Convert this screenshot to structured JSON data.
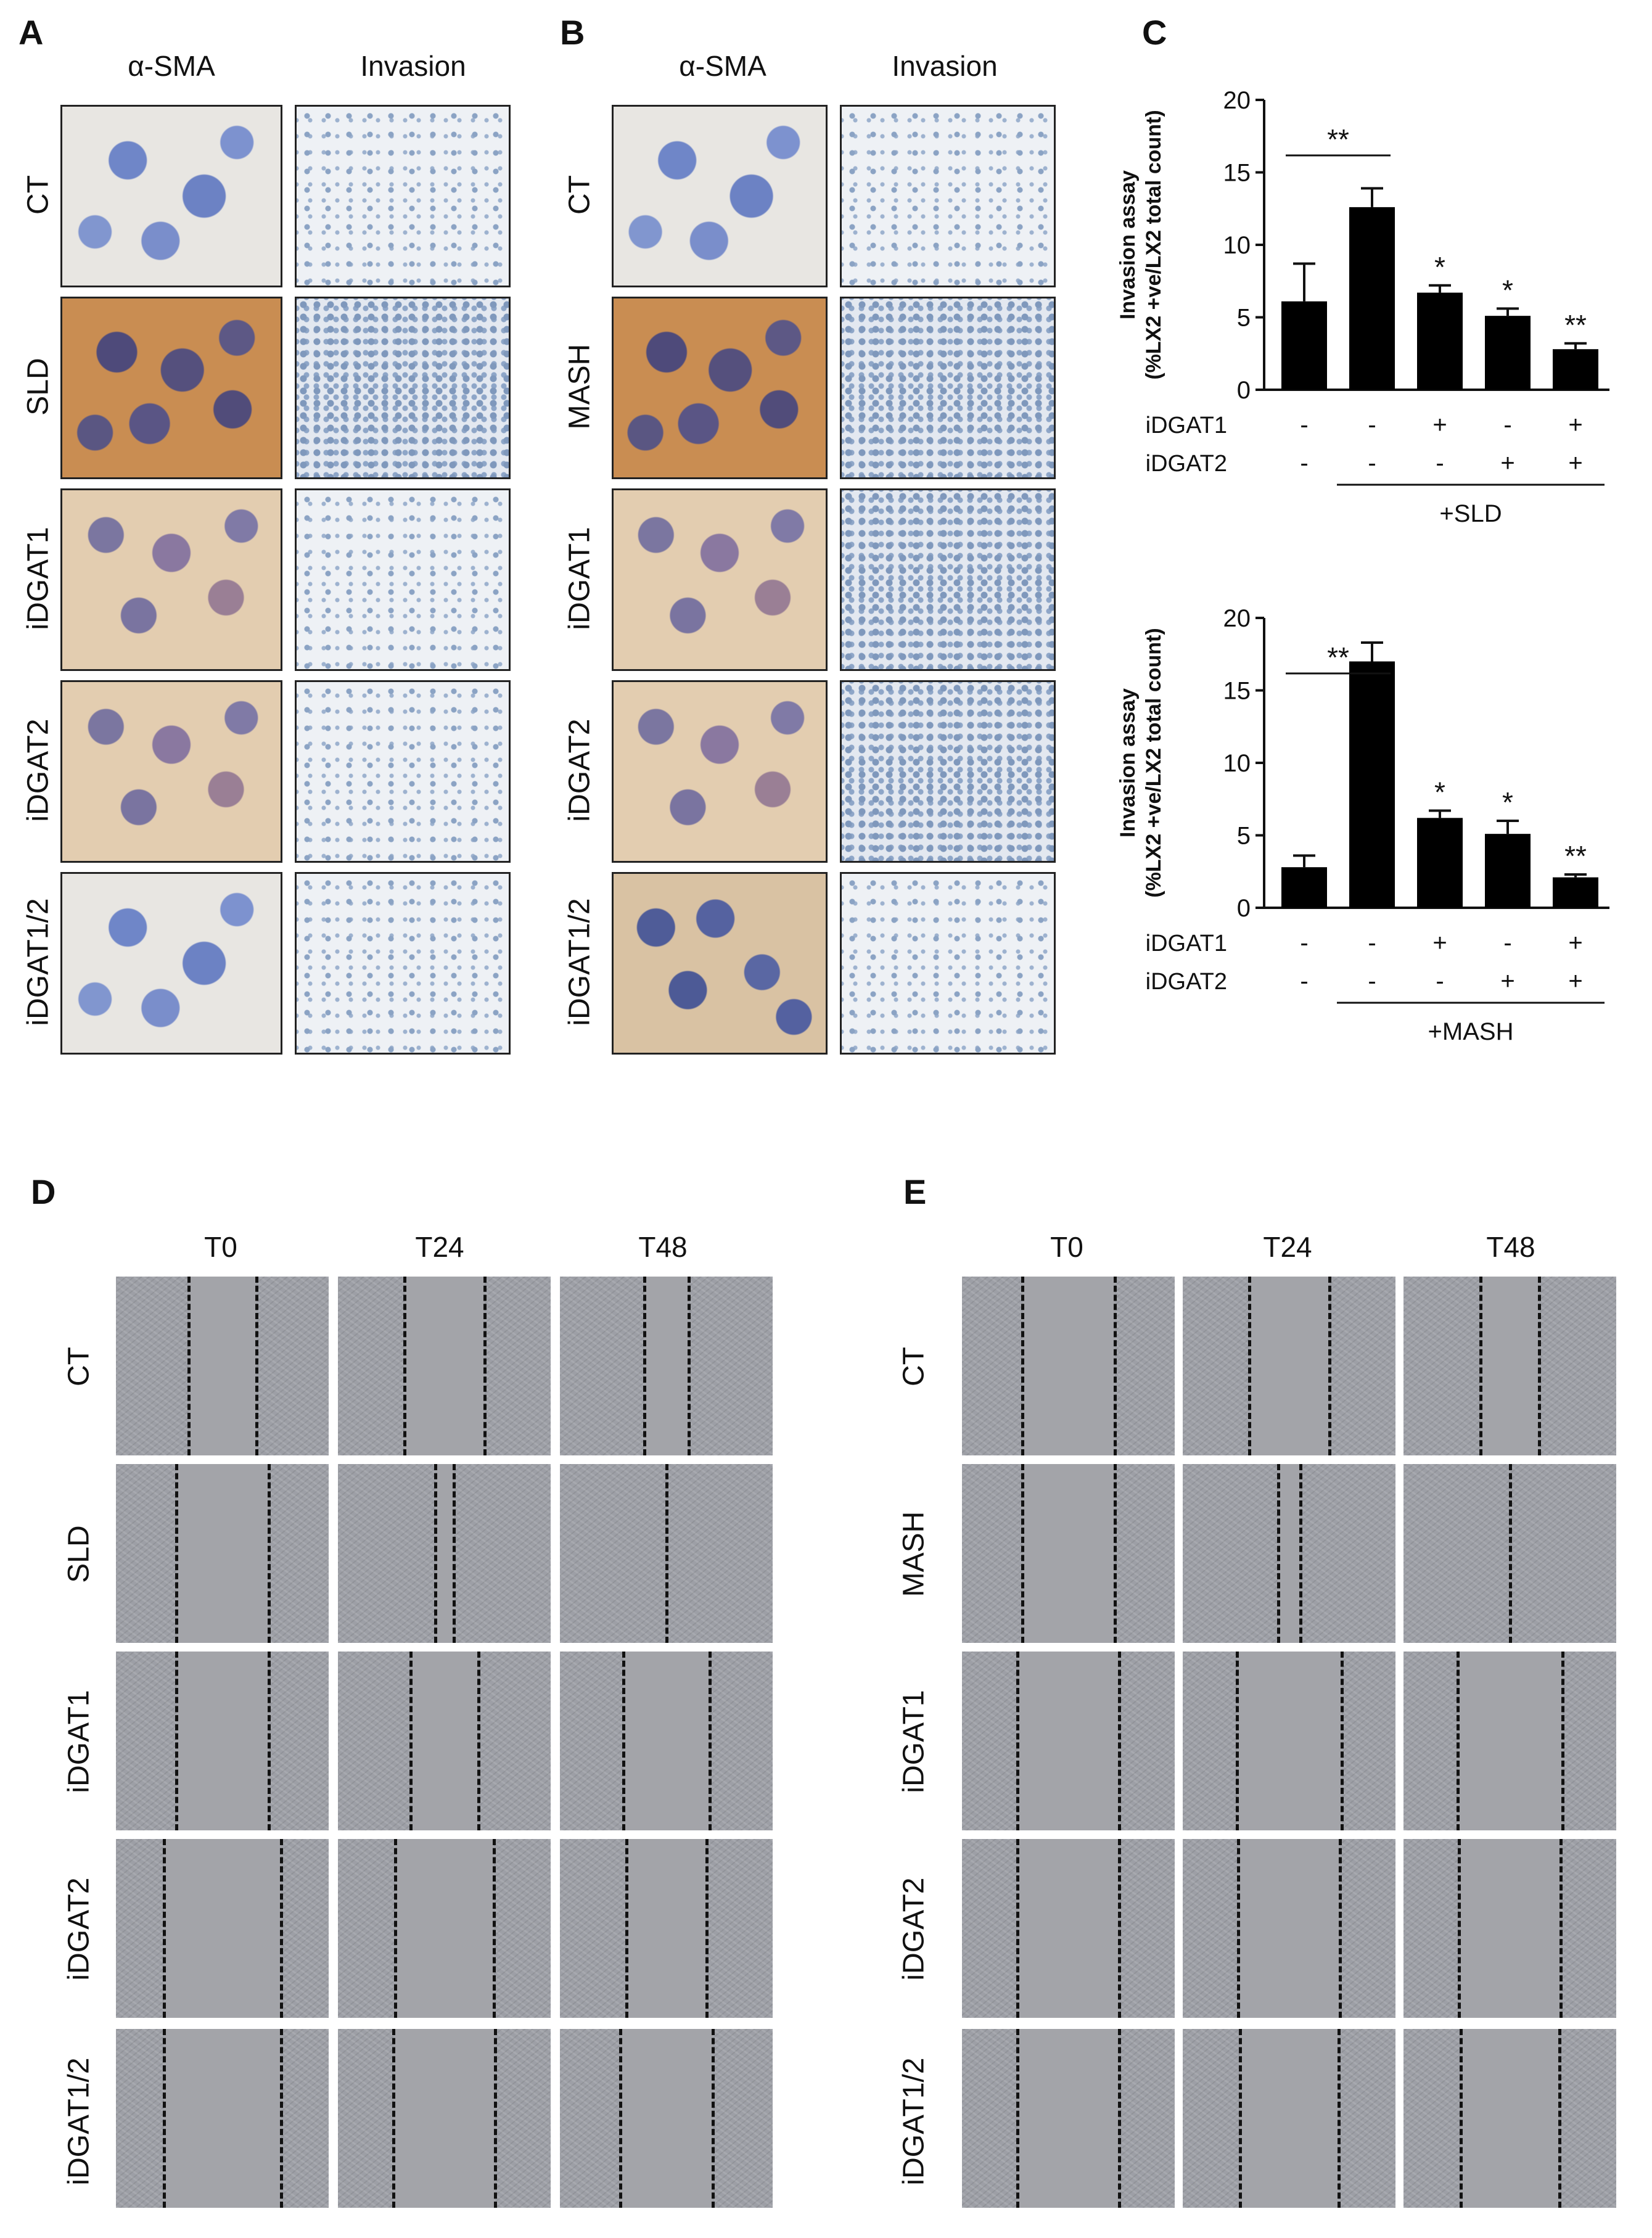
{
  "panels": {
    "A": {
      "letter": "A",
      "cols": [
        "α-SMA",
        "Invasion"
      ],
      "rows": [
        "CT",
        "SLD",
        "iDGAT1",
        "iDGAT2",
        "iDGAT1/2"
      ]
    },
    "B": {
      "letter": "B",
      "cols": [
        "α-SMA",
        "Invasion"
      ],
      "rows": [
        "CT",
        "MASH",
        "iDGAT1",
        "iDGAT2",
        "iDGAT1/2"
      ]
    },
    "C": {
      "letter": "C"
    },
    "D": {
      "letter": "D",
      "cols": [
        "T0",
        "T24",
        "T48"
      ],
      "rows": [
        "CT",
        "SLD",
        "iDGAT1",
        "iDGAT2",
        "iDGAT1/2"
      ]
    },
    "E": {
      "letter": "E",
      "cols": [
        "T0",
        "T24",
        "T48"
      ],
      "rows": [
        "CT",
        "MASH",
        "iDGAT1",
        "iDGAT2",
        "iDGAT1/2"
      ]
    }
  },
  "chart_data": [
    {
      "type": "bar",
      "ylabel_line1": "Invasion assay",
      "ylabel_line2": "(%LX2 +ve/LX2 total count)",
      "ylim": [
        0,
        20
      ],
      "yticks": [
        "0",
        "5",
        "10",
        "15",
        "20"
      ],
      "values": [
        6.1,
        12.6,
        6.7,
        5.1,
        2.8
      ],
      "errors": [
        2.6,
        1.3,
        0.5,
        0.5,
        0.4
      ],
      "significance": [
        "",
        "",
        "*",
        "*",
        "**"
      ],
      "bracket_label": "**",
      "treatment_rows": [
        {
          "label": "iDGAT1",
          "marks": [
            "-",
            "-",
            "+",
            "-",
            "+"
          ]
        },
        {
          "label": "iDGAT2",
          "marks": [
            "-",
            "-",
            "-",
            "+",
            "+"
          ]
        }
      ],
      "group_label": "+SLD",
      "bar_color": "#000000"
    },
    {
      "type": "bar",
      "ylabel_line1": "Invasion assay",
      "ylabel_line2": "(%LX2 +ve/LX2 total count)",
      "ylim": [
        0,
        20
      ],
      "yticks": [
        "0",
        "5",
        "10",
        "15",
        "20"
      ],
      "values": [
        2.8,
        17.0,
        6.2,
        5.1,
        2.1
      ],
      "errors": [
        0.8,
        1.3,
        0.5,
        0.9,
        0.2
      ],
      "significance": [
        "",
        "",
        "*",
        "*",
        "**"
      ],
      "bracket_label": "**",
      "treatment_rows": [
        {
          "label": "iDGAT1",
          "marks": [
            "-",
            "-",
            "+",
            "-",
            "+"
          ]
        },
        {
          "label": "iDGAT2",
          "marks": [
            "-",
            "-",
            "-",
            "+",
            "+"
          ]
        }
      ],
      "group_label": "+MASH",
      "bar_color": "#000000"
    }
  ]
}
